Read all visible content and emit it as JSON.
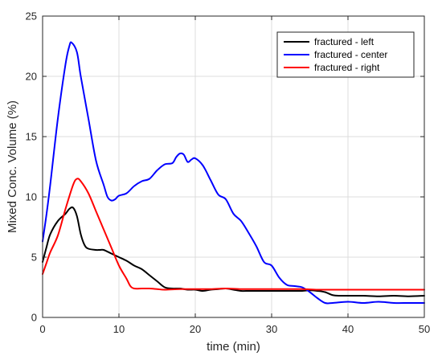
{
  "chart_data": {
    "type": "line",
    "title": "",
    "xlabel": "time (min)",
    "ylabel": "Mixed Conc. Volume (%)",
    "xlim": [
      0,
      50
    ],
    "ylim": [
      0,
      25
    ],
    "xticks": [
      0,
      10,
      20,
      30,
      40,
      50
    ],
    "yticks": [
      0,
      5,
      10,
      15,
      20,
      25
    ],
    "grid": true,
    "legend_position": "top-right",
    "series": [
      {
        "name": "fractured - left",
        "color": "#000000",
        "points": [
          [
            0,
            4.6
          ],
          [
            0.5,
            5.8
          ],
          [
            1,
            6.9
          ],
          [
            2,
            8.0
          ],
          [
            3,
            8.6
          ],
          [
            3.5,
            9.0
          ],
          [
            4,
            9.1
          ],
          [
            4.5,
            8.4
          ],
          [
            5,
            6.9
          ],
          [
            5.5,
            6.0
          ],
          [
            6,
            5.7
          ],
          [
            7,
            5.6
          ],
          [
            7.5,
            5.6
          ],
          [
            8,
            5.6
          ],
          [
            9,
            5.3
          ],
          [
            10,
            5.0
          ],
          [
            11,
            4.7
          ],
          [
            12,
            4.3
          ],
          [
            13,
            4.0
          ],
          [
            14,
            3.5
          ],
          [
            15,
            3.0
          ],
          [
            16,
            2.5
          ],
          [
            17,
            2.4
          ],
          [
            18,
            2.4
          ],
          [
            19,
            2.3
          ],
          [
            20,
            2.3
          ],
          [
            21,
            2.2
          ],
          [
            22,
            2.3
          ],
          [
            23,
            2.35
          ],
          [
            24,
            2.4
          ],
          [
            25,
            2.3
          ],
          [
            26,
            2.2
          ],
          [
            27,
            2.2
          ],
          [
            28,
            2.2
          ],
          [
            30,
            2.2
          ],
          [
            32,
            2.2
          ],
          [
            34,
            2.2
          ],
          [
            35,
            2.25
          ],
          [
            36,
            2.2
          ],
          [
            37,
            2.1
          ],
          [
            38,
            1.85
          ],
          [
            39,
            1.8
          ],
          [
            40,
            1.8
          ],
          [
            42,
            1.8
          ],
          [
            44,
            1.75
          ],
          [
            46,
            1.8
          ],
          [
            48,
            1.75
          ],
          [
            50,
            1.8
          ]
        ]
      },
      {
        "name": "fractured - center",
        "color": "#0000ff",
        "points": [
          [
            0,
            6.3
          ],
          [
            0.5,
            8.5
          ],
          [
            1,
            11.0
          ],
          [
            2,
            16.5
          ],
          [
            3,
            21.0
          ],
          [
            3.5,
            22.5
          ],
          [
            3.8,
            22.8
          ],
          [
            4.5,
            22.0
          ],
          [
            5,
            20.0
          ],
          [
            6,
            16.5
          ],
          [
            7,
            13.0
          ],
          [
            8,
            11.0
          ],
          [
            8.5,
            10.0
          ],
          [
            9,
            9.7
          ],
          [
            9.5,
            9.8
          ],
          [
            10,
            10.1
          ],
          [
            11,
            10.3
          ],
          [
            12,
            10.9
          ],
          [
            13,
            11.3
          ],
          [
            14,
            11.5
          ],
          [
            15,
            12.2
          ],
          [
            16,
            12.7
          ],
          [
            17,
            12.8
          ],
          [
            17.5,
            13.3
          ],
          [
            18,
            13.6
          ],
          [
            18.5,
            13.5
          ],
          [
            19,
            12.9
          ],
          [
            19.5,
            13.1
          ],
          [
            20,
            13.2
          ],
          [
            21,
            12.6
          ],
          [
            22,
            11.4
          ],
          [
            23,
            10.2
          ],
          [
            24,
            9.8
          ],
          [
            25,
            8.6
          ],
          [
            26,
            8.0
          ],
          [
            27,
            7.0
          ],
          [
            28,
            5.9
          ],
          [
            29,
            4.6
          ],
          [
            30,
            4.3
          ],
          [
            31,
            3.3
          ],
          [
            32,
            2.7
          ],
          [
            33,
            2.6
          ],
          [
            34,
            2.5
          ],
          [
            35,
            2.1
          ],
          [
            36,
            1.6
          ],
          [
            37,
            1.2
          ],
          [
            38,
            1.2
          ],
          [
            40,
            1.3
          ],
          [
            42,
            1.2
          ],
          [
            44,
            1.3
          ],
          [
            46,
            1.2
          ],
          [
            48,
            1.2
          ],
          [
            50,
            1.2
          ]
        ]
      },
      {
        "name": "fractured - right",
        "color": "#ff0000",
        "points": [
          [
            0,
            3.6
          ],
          [
            0.5,
            4.5
          ],
          [
            1,
            5.4
          ],
          [
            2,
            6.8
          ],
          [
            3,
            9.0
          ],
          [
            4,
            11.0
          ],
          [
            4.5,
            11.5
          ],
          [
            5,
            11.3
          ],
          [
            6,
            10.3
          ],
          [
            7,
            8.8
          ],
          [
            8,
            7.3
          ],
          [
            9,
            5.8
          ],
          [
            10,
            4.3
          ],
          [
            11,
            3.2
          ],
          [
            11.5,
            2.6
          ],
          [
            12,
            2.4
          ],
          [
            13,
            2.4
          ],
          [
            14,
            2.4
          ],
          [
            15,
            2.35
          ],
          [
            16,
            2.3
          ],
          [
            18,
            2.35
          ],
          [
            20,
            2.35
          ],
          [
            22,
            2.35
          ],
          [
            24,
            2.4
          ],
          [
            26,
            2.35
          ],
          [
            28,
            2.35
          ],
          [
            30,
            2.35
          ],
          [
            32,
            2.35
          ],
          [
            34,
            2.35
          ],
          [
            36,
            2.3
          ],
          [
            38,
            2.3
          ],
          [
            40,
            2.3
          ],
          [
            42,
            2.3
          ],
          [
            44,
            2.3
          ],
          [
            46,
            2.3
          ],
          [
            48,
            2.3
          ],
          [
            50,
            2.3
          ]
        ]
      }
    ]
  }
}
